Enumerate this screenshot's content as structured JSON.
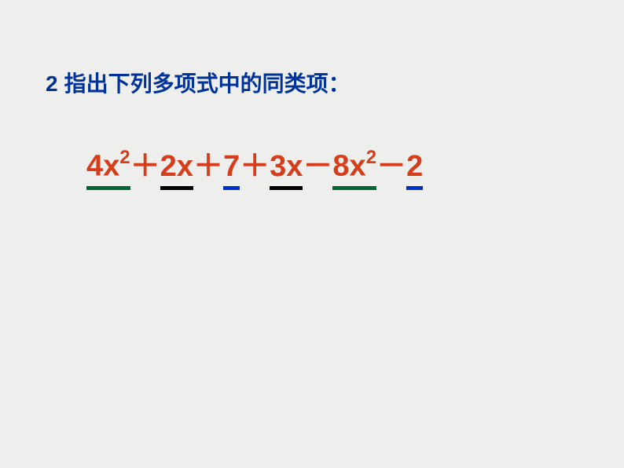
{
  "title": {
    "number": "2",
    "text": "指出下列多项式中的同类项：",
    "color": "#003399",
    "number_font": "Arial",
    "text_font": "SimSun",
    "fontsize": 28
  },
  "expression": {
    "color": "#d63d1a",
    "fontsize": 38,
    "sup_fontsize": 24,
    "underline_colors": {
      "green": "#006633",
      "black": "#000000",
      "blue": "#0033cc"
    },
    "terms": [
      {
        "text": "4x",
        "sup": "2",
        "underline": "green"
      },
      {
        "op": "＋"
      },
      {
        "text": "2x",
        "sup": "",
        "underline": "black"
      },
      {
        "op": "＋"
      },
      {
        "text": "7",
        "sup": "",
        "underline": "blue"
      },
      {
        "op": "＋"
      },
      {
        "text": "3x",
        "sup": "",
        "underline": "black"
      },
      {
        "op": "－"
      },
      {
        "text": "8x",
        "sup": "2",
        "underline": "green"
      },
      {
        "op": "－"
      },
      {
        "text": "2",
        "sup": "",
        "underline": "blue"
      }
    ]
  },
  "background_color": "#eeeeec"
}
